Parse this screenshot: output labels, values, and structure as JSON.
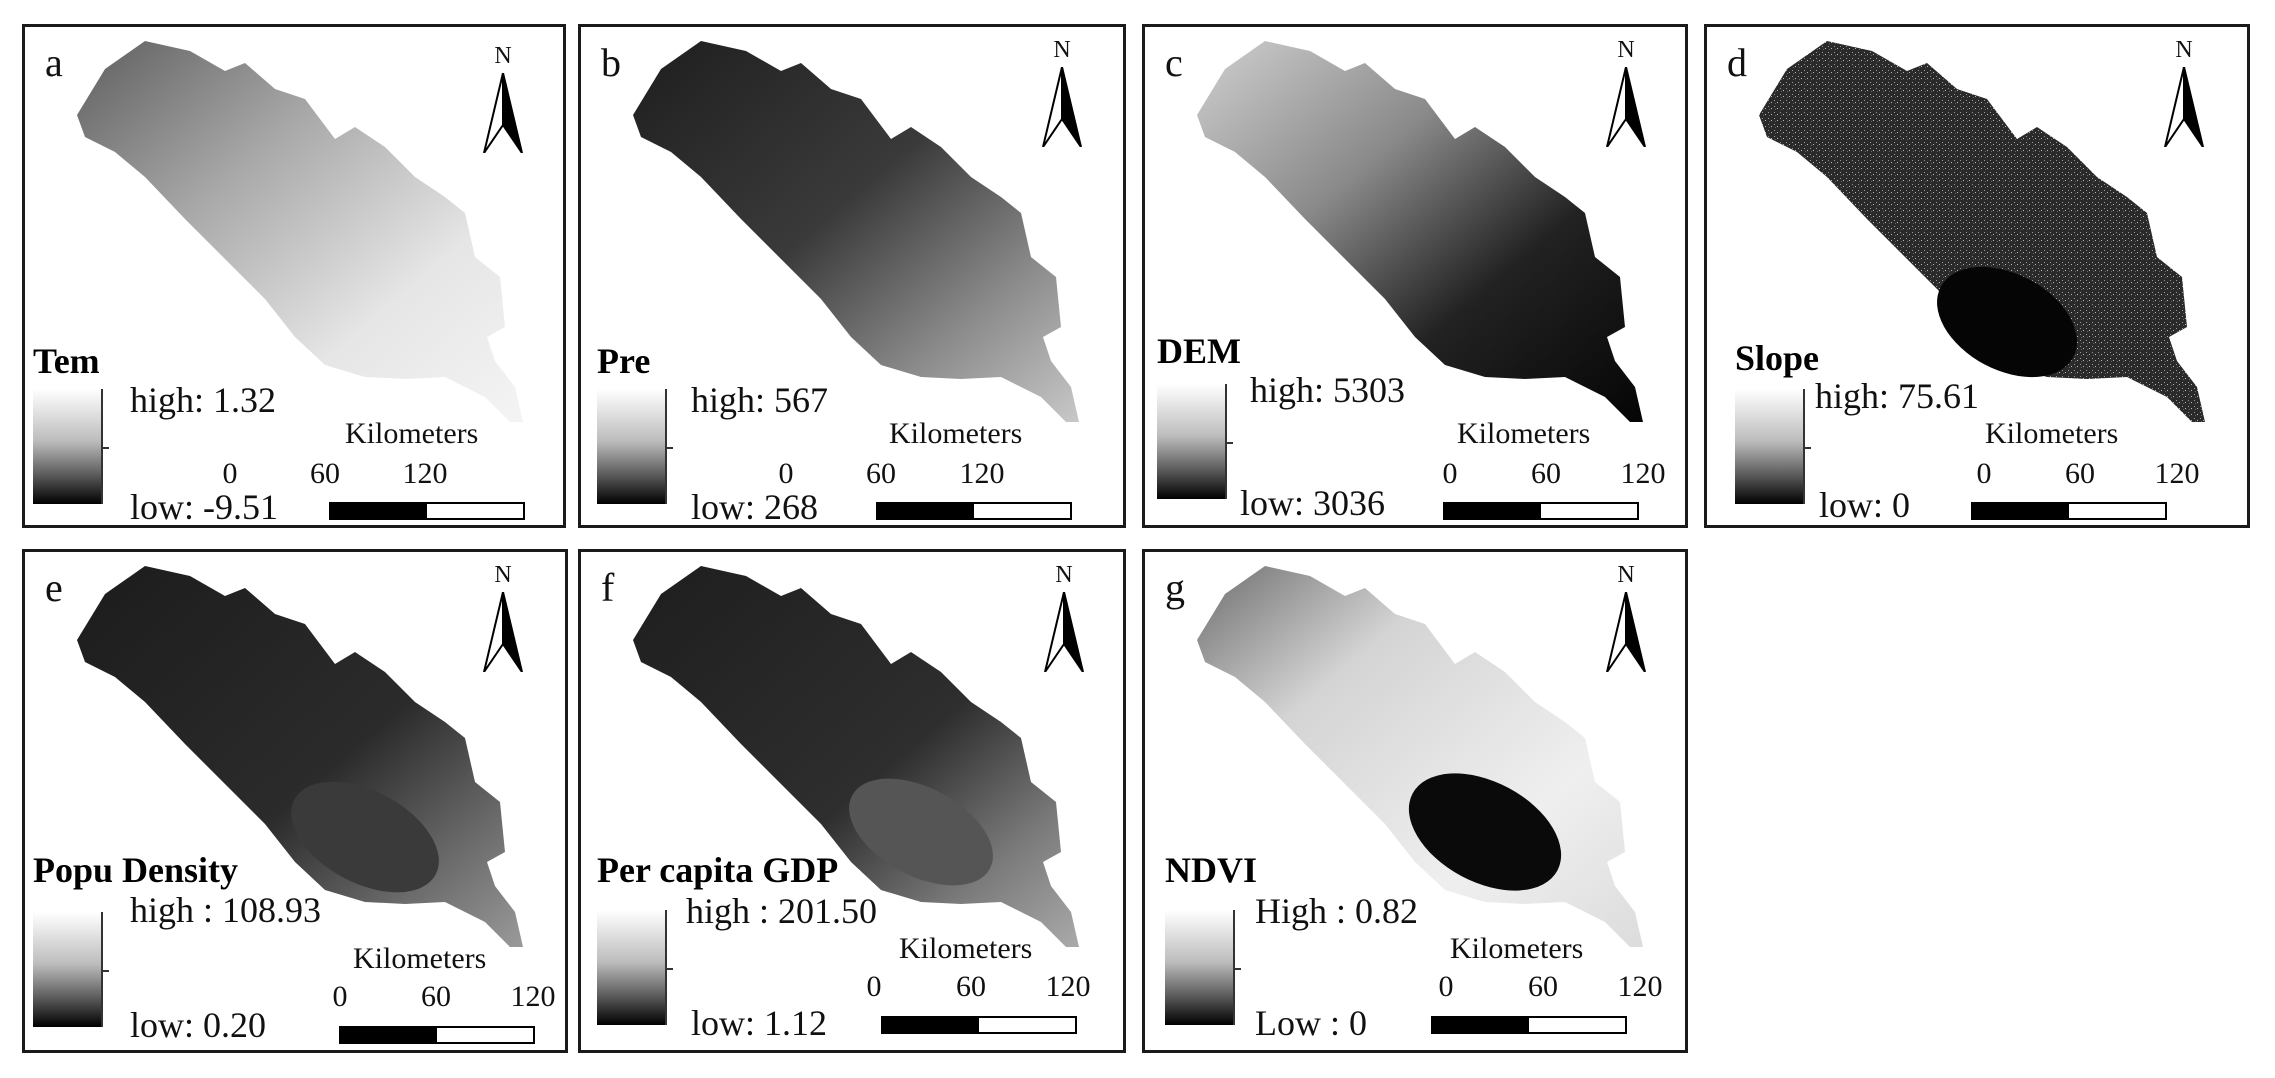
{
  "panels": [
    {
      "letter": "a",
      "legend_title": "Tem",
      "high": "high: 1.32",
      "low": "low: -9.51"
    },
    {
      "letter": "b",
      "legend_title": "Pre",
      "high": "high: 567",
      "low": "low: 268"
    },
    {
      "letter": "c",
      "legend_title": "DEM",
      "high": "high: 5303",
      "low": "low: 3036"
    },
    {
      "letter": "d",
      "legend_title": "Slope",
      "high": "high: 75.61",
      "low": "low: 0"
    },
    {
      "letter": "e",
      "legend_title": "Popu Density",
      "high": "high : 108.93",
      "low": "low: 0.20"
    },
    {
      "letter": "f",
      "legend_title": "Per capita GDP",
      "high": "high : 201.50",
      "low": "low: 1.12"
    },
    {
      "letter": "g",
      "legend_title": "NDVI",
      "high": "High : 0.82",
      "low": "Low : 0"
    }
  ],
  "north_label": "N",
  "scale": {
    "title": "Kilometers",
    "ticks": [
      "0",
      "60",
      "120"
    ]
  },
  "colors": {
    "border": "#1a1a1a",
    "legend_top": "#ffffff",
    "legend_bottom": "#000000"
  }
}
